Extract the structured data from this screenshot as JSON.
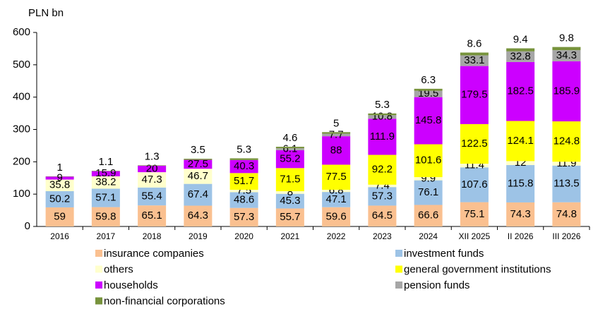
{
  "chart_data": {
    "type": "stacked_bar",
    "y_label": "PLN bn",
    "categories": [
      "2016",
      "2017",
      "2018",
      "2019",
      "2020",
      "2021",
      "2022",
      "2023",
      "2024",
      "XII 2025",
      "II 2026",
      "III 2026"
    ],
    "ylim": [
      0,
      600
    ],
    "yticks": [
      0,
      100,
      200,
      300,
      400,
      500,
      600
    ],
    "grid": false,
    "legend": "bottom",
    "series": [
      {
        "name": "insurance companies",
        "color": "#FAC090",
        "values": [
          59.0,
          59.8,
          65.1,
          64.3,
          57.3,
          55.7,
          59.6,
          64.5,
          66.6,
          75.1,
          74.3,
          74.8
        ]
      },
      {
        "name": "investment funds",
        "color": "#9DC3E6",
        "values": [
          50.2,
          57.1,
          55.4,
          67.4,
          48.6,
          45.3,
          47.1,
          57.3,
          76.1,
          107.6,
          115.8,
          113.5
        ]
      },
      {
        "name": "others",
        "color": "#FFFFCC",
        "values": [
          35.8,
          38.2,
          47.3,
          46.7,
          7.5,
          8.0,
          6.8,
          7.4,
          9.9,
          11.4,
          12.0,
          11.9
        ]
      },
      {
        "name": "general government institutions",
        "color": "#FFFF00",
        "values": [
          null,
          null,
          null,
          null,
          51.7,
          71.5,
          77.5,
          92.2,
          101.6,
          122.5,
          124.1,
          124.8
        ]
      },
      {
        "name": "households",
        "color": "#CC00FF",
        "values": [
          9,
          15.9,
          20.0,
          27.5,
          40.3,
          55.2,
          88.0,
          111.9,
          145.8,
          179.5,
          182.5,
          185.9
        ]
      },
      {
        "name": "pension funds",
        "color": "#A6A6A6",
        "values": [
          null,
          null,
          null,
          null,
          null,
          6.1,
          7.7,
          10.8,
          19.5,
          33.1,
          32.8,
          34.3
        ]
      },
      {
        "name": "non-financial corporations",
        "color": "#77933C",
        "values": [
          1.0,
          1.1,
          1.3,
          3.5,
          5.3,
          4.6,
          5.0,
          5.3,
          6.3,
          8.6,
          9.4,
          9.8
        ]
      }
    ]
  }
}
